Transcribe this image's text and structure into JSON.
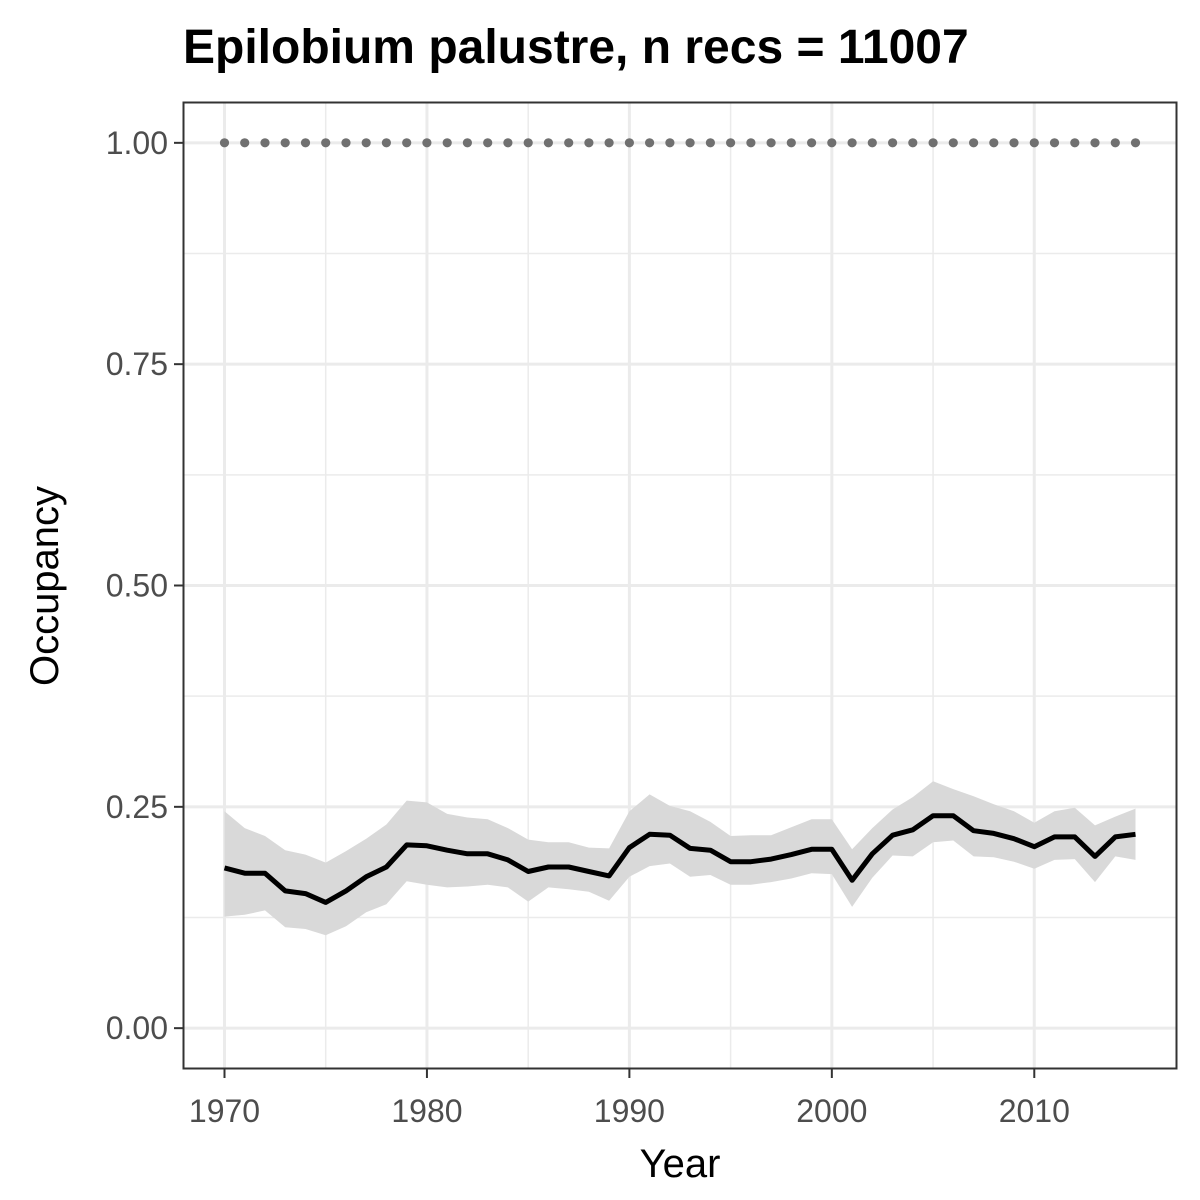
{
  "chart_data": {
    "type": "line",
    "title": "Epilobium palustre, n recs = 11007",
    "xlabel": "Year",
    "ylabel": "Occupancy",
    "xlim": [
      1968,
      2017
    ],
    "ylim": [
      -0.045,
      1.045
    ],
    "xticks": [
      1970,
      1980,
      1990,
      2000,
      2010
    ],
    "yticks": [
      0.0,
      0.25,
      0.5,
      0.75,
      1.0
    ],
    "ytick_labels": [
      "0.00",
      "0.25",
      "0.50",
      "0.75",
      "1.00"
    ],
    "grid": true,
    "legend": "none",
    "x": [
      1970,
      1971,
      1972,
      1973,
      1974,
      1975,
      1976,
      1977,
      1978,
      1979,
      1980,
      1981,
      1982,
      1983,
      1984,
      1985,
      1986,
      1987,
      1988,
      1989,
      1990,
      1991,
      1992,
      1993,
      1994,
      1995,
      1996,
      1997,
      1998,
      1999,
      2000,
      2001,
      2002,
      2003,
      2004,
      2005,
      2006,
      2007,
      2008,
      2009,
      2010,
      2011,
      2012,
      2013,
      2014,
      2015
    ],
    "series": [
      {
        "role": "estimate",
        "color": "#000000",
        "values": [
          0.181,
          0.175,
          0.175,
          0.155,
          0.152,
          0.142,
          0.155,
          0.171,
          0.182,
          0.207,
          0.206,
          0.201,
          0.197,
          0.197,
          0.19,
          0.177,
          0.182,
          0.182,
          0.177,
          0.172,
          0.204,
          0.219,
          0.218,
          0.203,
          0.201,
          0.188,
          0.188,
          0.191,
          0.196,
          0.202,
          0.202,
          0.167,
          0.197,
          0.218,
          0.224,
          0.24,
          0.24,
          0.223,
          0.22,
          0.214,
          0.205,
          0.216,
          0.216,
          0.194,
          0.216,
          0.219
        ]
      },
      {
        "role": "credible-interval-upper",
        "color": "#d9d9d9",
        "values": [
          0.245,
          0.226,
          0.217,
          0.201,
          0.196,
          0.187,
          0.2,
          0.214,
          0.23,
          0.257,
          0.255,
          0.242,
          0.238,
          0.236,
          0.226,
          0.213,
          0.21,
          0.21,
          0.204,
          0.203,
          0.245,
          0.264,
          0.251,
          0.245,
          0.233,
          0.217,
          0.218,
          0.218,
          0.227,
          0.236,
          0.236,
          0.202,
          0.226,
          0.247,
          0.261,
          0.279,
          0.27,
          0.262,
          0.253,
          0.245,
          0.232,
          0.245,
          0.249,
          0.229,
          0.239,
          0.248
        ]
      },
      {
        "role": "credible-interval-lower",
        "color": "#d9d9d9",
        "values": [
          0.126,
          0.128,
          0.133,
          0.114,
          0.112,
          0.105,
          0.115,
          0.131,
          0.14,
          0.166,
          0.162,
          0.159,
          0.16,
          0.162,
          0.159,
          0.143,
          0.159,
          0.157,
          0.154,
          0.144,
          0.171,
          0.183,
          0.186,
          0.171,
          0.173,
          0.162,
          0.162,
          0.165,
          0.169,
          0.175,
          0.174,
          0.137,
          0.17,
          0.195,
          0.194,
          0.21,
          0.212,
          0.194,
          0.193,
          0.188,
          0.18,
          0.19,
          0.191,
          0.165,
          0.194,
          0.19
        ]
      },
      {
        "role": "reference-dotted",
        "color": "#707070",
        "values": [
          1,
          1,
          1,
          1,
          1,
          1,
          1,
          1,
          1,
          1,
          1,
          1,
          1,
          1,
          1,
          1,
          1,
          1,
          1,
          1,
          1,
          1,
          1,
          1,
          1,
          1,
          1,
          1,
          1,
          1,
          1,
          1,
          1,
          1,
          1,
          1,
          1,
          1,
          1,
          1,
          1,
          1,
          1,
          1,
          1,
          1
        ]
      }
    ]
  }
}
